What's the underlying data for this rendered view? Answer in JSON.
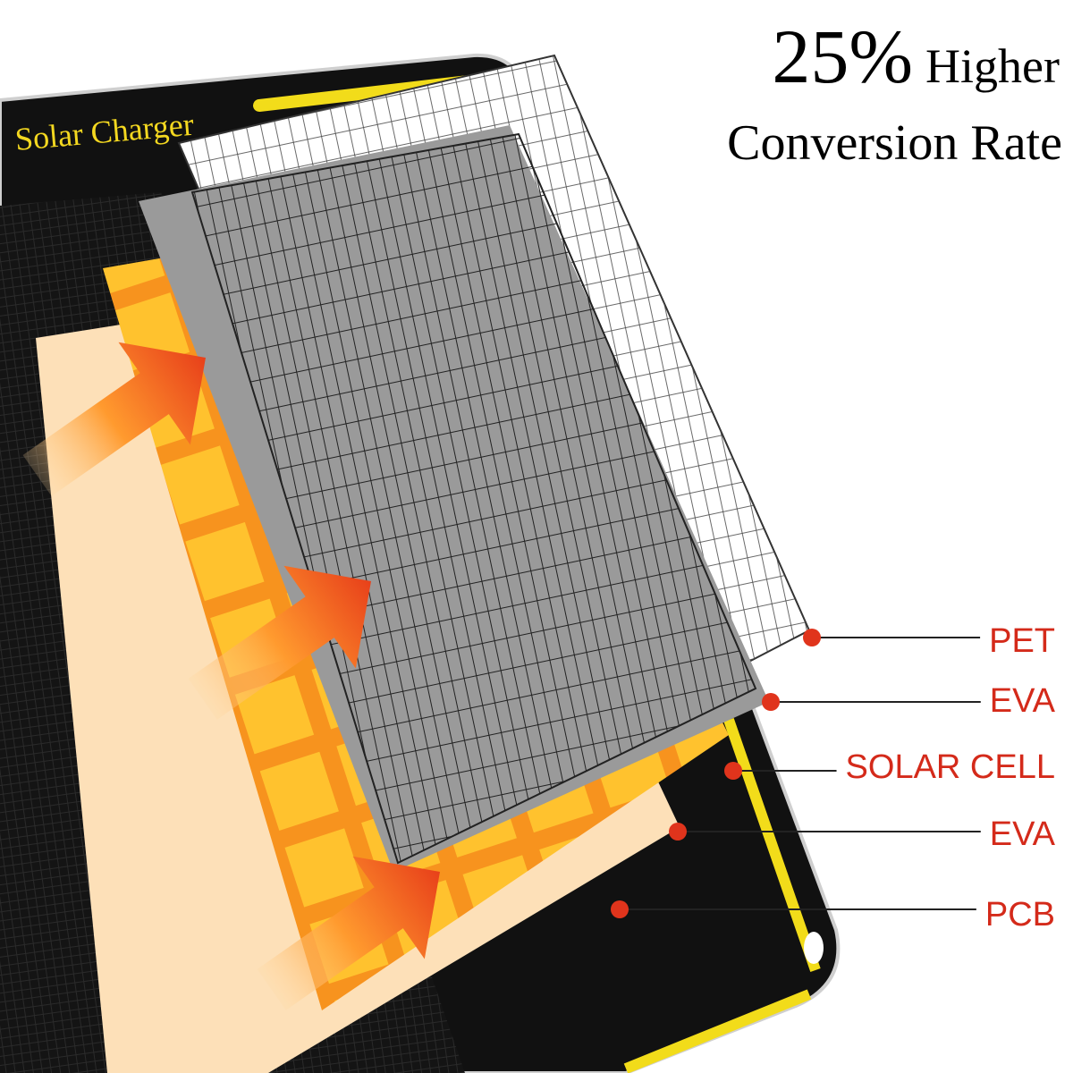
{
  "headline": {
    "number": "25%",
    "rest": "Higher",
    "line2": "Conversion Rate"
  },
  "panel_label": "Solar Charger",
  "layers": [
    {
      "label": "PET"
    },
    {
      "label": "EVA"
    },
    {
      "label": "SOLAR CELL"
    },
    {
      "label": "EVA"
    },
    {
      "label": "PCB"
    }
  ]
}
